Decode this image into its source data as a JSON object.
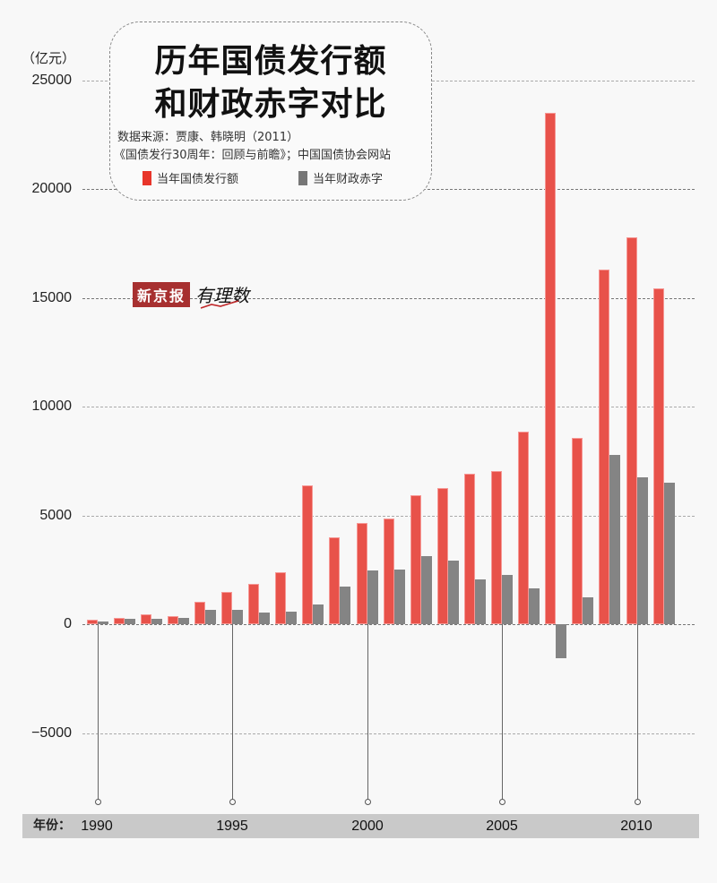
{
  "chart_data": {
    "type": "bar",
    "title": "历年国债发行额和财政赤字对比",
    "title_lines": [
      "历年国债发行额",
      "和财政赤字对比"
    ],
    "source_lines": [
      "数据来源：贾康、韩晓明（2011）",
      "《国债发行30周年：回顾与前瞻》；中国国债协会网站"
    ],
    "ylabel": "（亿元）",
    "xlabel": "年份：",
    "ylim": [
      -8000,
      25000
    ],
    "yticks": [
      25000,
      20000,
      15000,
      10000,
      5000,
      0,
      -5000
    ],
    "ytick_labels": [
      "25000",
      "20000",
      "15000",
      "10000",
      "5000",
      "0",
      "−5000"
    ],
    "xticks": [
      1990,
      1995,
      2000,
      2005,
      2010
    ],
    "xtick_labels": [
      "1990",
      "1995",
      "2000",
      "2005",
      "2010"
    ],
    "grid": true,
    "legend_position": "top-left (inside title box)",
    "categories": [
      1990,
      1991,
      1992,
      1993,
      1994,
      1995,
      1996,
      1997,
      1998,
      1999,
      2000,
      2001,
      2002,
      2003,
      2004,
      2005,
      2006,
      2007,
      2008,
      2009,
      2010,
      2011
    ],
    "series": [
      {
        "name": "当年国债发行额",
        "color": "#e8524a",
        "values": [
          200,
          280,
          460,
          380,
          1030,
          1480,
          1850,
          2410,
          6390,
          4000,
          4650,
          4880,
          5930,
          6270,
          6910,
          7040,
          8880,
          23510,
          8570,
          16300,
          17800,
          15460
        ]
      },
      {
        "name": "当年财政赤字",
        "color": "#848484",
        "values": [
          140,
          240,
          260,
          300,
          680,
          660,
          530,
          580,
          920,
          1740,
          2490,
          2520,
          3150,
          2930,
          2090,
          2280,
          1660,
          -1540,
          1260,
          7800,
          6780,
          6510
        ]
      }
    ]
  },
  "branding": {
    "newspaper": "新京报",
    "column": "有理数"
  },
  "colors": {
    "red": "#e8524a",
    "gray": "#848484",
    "background": "#f8f8f8",
    "yearbar": "#c9c9c9"
  }
}
